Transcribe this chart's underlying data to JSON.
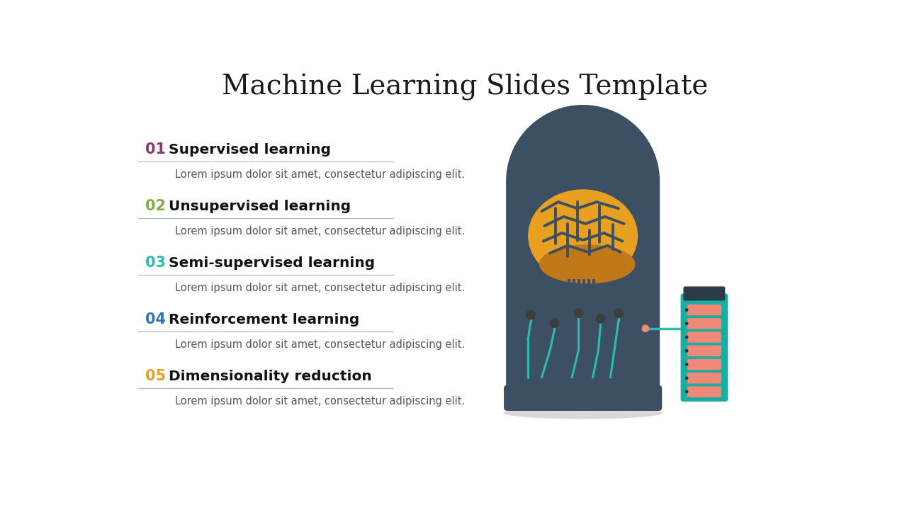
{
  "title": "Machine Learning Slides Template",
  "title_fontsize": 28,
  "title_color": "#1a1a1a",
  "background_color": "#ffffff",
  "items": [
    {
      "number": "01",
      "number_color": "#8B3A6B",
      "heading": "Supervised learning",
      "body": "Lorem ipsum dolor sit amet, consectetur adipiscing elit."
    },
    {
      "number": "02",
      "number_color": "#7DB03A",
      "heading": "Unsupervised learning",
      "body": "Lorem ipsum dolor sit amet, consectetur adipiscing elit."
    },
    {
      "number": "03",
      "number_color": "#2BBCB0",
      "heading": "Semi-supervised learning",
      "body": "Lorem ipsum dolor sit amet, consectetur adipiscing elit."
    },
    {
      "number": "04",
      "number_color": "#2E75B6",
      "heading": "Reinforcement learning",
      "body": "Lorem ipsum dolor sit amet, consectetur adipiscing elit."
    },
    {
      "number": "05",
      "number_color": "#E8A020",
      "heading": "Dimensionality reduction",
      "body": "Lorem ipsum dolor sit amet, consectetur adipiscing elit."
    }
  ],
  "dome_color": "#3D4F63",
  "brain_orange": "#E8A020",
  "brain_dark_orange": "#C07818",
  "brain_brown": "#8B5E10",
  "brain_line_color": "#3D4F63",
  "circuit_color": "#2BBCB0",
  "node_color": "#3D3D3D",
  "server_teal": "#1AADA0",
  "server_stripe": "#F08878",
  "server_cap": "#2A3A48",
  "connector_pink": "#F08878",
  "base_color": "#3D4F63",
  "shadow_color": "#d8d8d8",
  "line_separator_color": "#aabbcc"
}
